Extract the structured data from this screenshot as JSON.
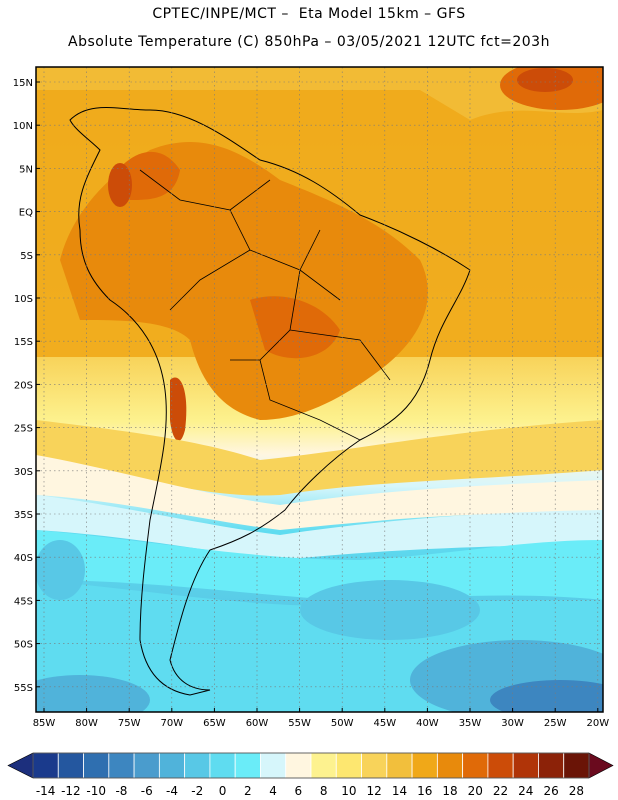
{
  "header": {
    "line1": "CPTEC/INPE/MCT –  Eta Model 15km – GFS",
    "line2": "Absolute Temperature (C) 850hPa – 03/05/2021 12UTC fct=203h"
  },
  "axes": {
    "lat_labels": [
      "15N",
      "10N",
      "5N",
      "EQ",
      "5S",
      "10S",
      "15S",
      "20S",
      "25S",
      "30S",
      "35S",
      "40S",
      "45S",
      "50S",
      "55S"
    ],
    "lon_labels": [
      "85W",
      "80W",
      "75W",
      "70W",
      "65W",
      "60W",
      "55W",
      "50W",
      "45W",
      "40W",
      "35W",
      "30W",
      "25W",
      "20W"
    ]
  },
  "colorbar": {
    "labels": [
      "-14",
      "-12",
      "-10",
      "-8",
      "-6",
      "-4",
      "-2",
      "0",
      "2",
      "4",
      "6",
      "8",
      "10",
      "12",
      "14",
      "16",
      "18",
      "20",
      "22",
      "24",
      "26",
      "28"
    ],
    "colors": [
      "#1a3a8c",
      "#24579f",
      "#2f6fb0",
      "#3d86c0",
      "#4a9ccd",
      "#50b3da",
      "#58c8e6",
      "#5fdcf0",
      "#6aecf8",
      "#d6f6fb",
      "#fff6e0",
      "#fdf28f",
      "#fde770",
      "#f8d35a",
      "#f2bf3c",
      "#f0a818",
      "#e88a0c",
      "#e06a08",
      "#cc4c08",
      "#b03408",
      "#8c2208",
      "#6a1406"
    ],
    "low_end_color": "#1c2f7d",
    "high_end_color": "#6a0a1e"
  }
}
